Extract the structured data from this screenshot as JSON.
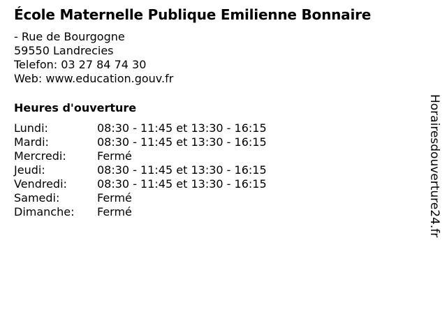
{
  "title": "École Maternelle Publique Emilienne Bonnaire",
  "address": {
    "street": "- Rue de Bourgogne",
    "city": "59550 Landrecies",
    "phone": "Telefon: 03 27 84 74 30",
    "web": "Web: www.education.gouv.fr"
  },
  "hours": {
    "heading": "Heures d'ouverture",
    "days": [
      {
        "day": "Lundi:",
        "time": "08:30 - 11:45 et 13:30 - 16:15"
      },
      {
        "day": "Mardi:",
        "time": "08:30 - 11:45 et 13:30 - 16:15"
      },
      {
        "day": "Mercredi:",
        "time": "Fermé"
      },
      {
        "day": "Jeudi:",
        "time": "08:30 - 11:45 et 13:30 - 16:15"
      },
      {
        "day": "Vendredi:",
        "time": "08:30 - 11:45 et 13:30 - 16:15"
      },
      {
        "day": "Samedi:",
        "time": "Fermé"
      },
      {
        "day": "Dimanche:",
        "time": "Fermé"
      }
    ]
  },
  "watermark": "Horairesdouverture24.fr"
}
